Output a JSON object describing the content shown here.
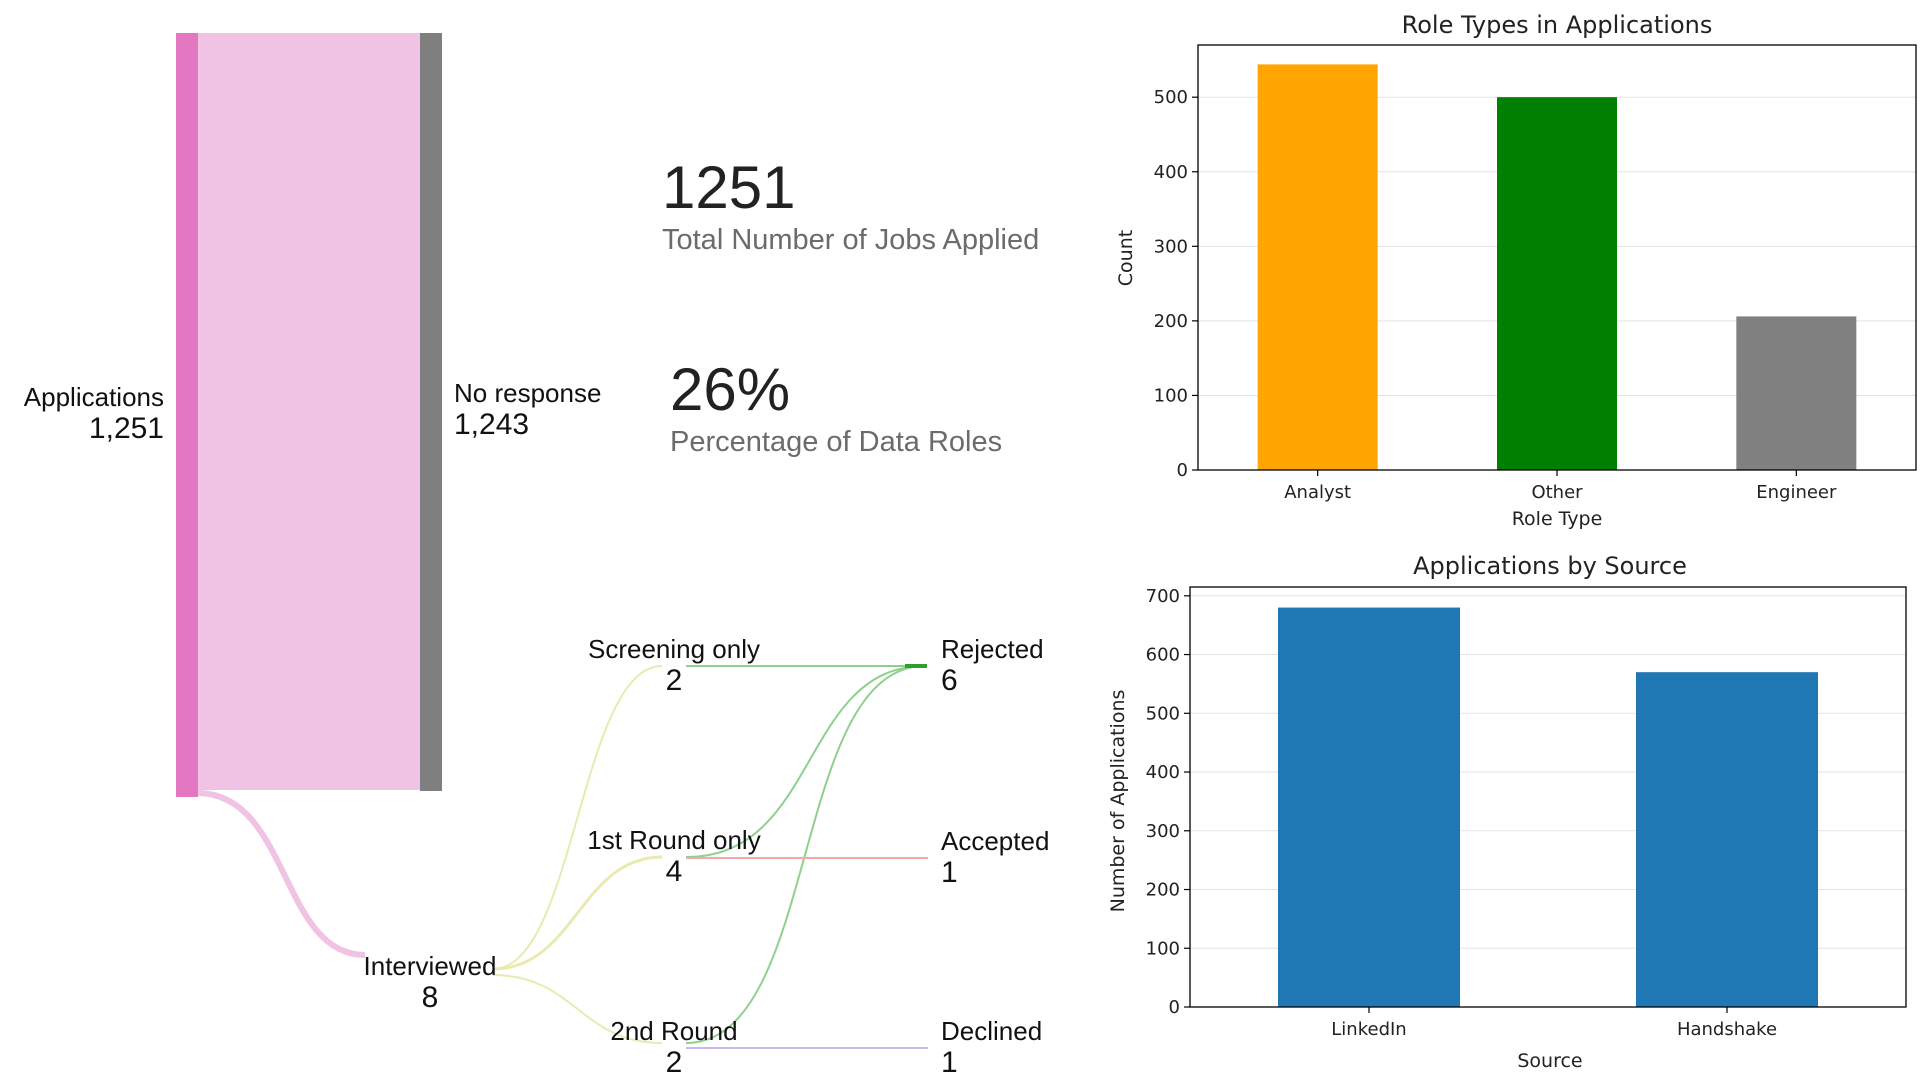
{
  "sankey": {
    "colors": {
      "applications": "#e377c2",
      "applications_link": "#f0c2e3",
      "no_response": "#7f7f7f",
      "interviewed_link": "#e9eab0",
      "rejected_link": "#8fd08f",
      "rejected_node": "#2ca02c",
      "accepted_link": "#f4a8a8",
      "declined_link": "#c9b8ee"
    },
    "nodes": [
      {
        "id": "applications",
        "label": "Applications",
        "value": "1,251"
      },
      {
        "id": "no_response",
        "label": "No response",
        "value": "1,243"
      },
      {
        "id": "interviewed",
        "label": "Interviewed",
        "value": "8"
      },
      {
        "id": "screening",
        "label": "Screening only",
        "value": "2"
      },
      {
        "id": "round1",
        "label": "1st Round only",
        "value": "4"
      },
      {
        "id": "round2",
        "label": "2nd Round",
        "value": "2"
      },
      {
        "id": "rejected",
        "label": "Rejected",
        "value": "6"
      },
      {
        "id": "accepted",
        "label": "Accepted",
        "value": "1"
      },
      {
        "id": "declined",
        "label": "Declined",
        "value": "1"
      }
    ]
  },
  "kpis": [
    {
      "value": "1251",
      "label": "Total Number of Jobs Applied"
    },
    {
      "value": "26%",
      "label": "Percentage of Data Roles"
    }
  ],
  "chart_data": [
    {
      "type": "bar",
      "title": "Role Types in Applications",
      "xlabel": "Role Type",
      "ylabel": "Count",
      "categories": [
        "Analyst",
        "Other",
        "Engineer"
      ],
      "values": [
        544,
        500,
        206
      ],
      "colors": [
        "#ffa500",
        "#008000",
        "#808080"
      ],
      "ylim": [
        0,
        570
      ],
      "yticks": [
        0,
        100,
        200,
        300,
        400,
        500
      ],
      "grid": true
    },
    {
      "type": "bar",
      "title": "Applications by Source",
      "xlabel": "Source",
      "ylabel": "Number of Applications",
      "categories": [
        "LinkedIn",
        "Handshake"
      ],
      "values": [
        680,
        570
      ],
      "colors": [
        "#1f77b4",
        "#1f77b4"
      ],
      "ylim": [
        0,
        715
      ],
      "yticks": [
        0,
        100,
        200,
        300,
        400,
        500,
        600,
        700
      ],
      "grid": true
    }
  ]
}
